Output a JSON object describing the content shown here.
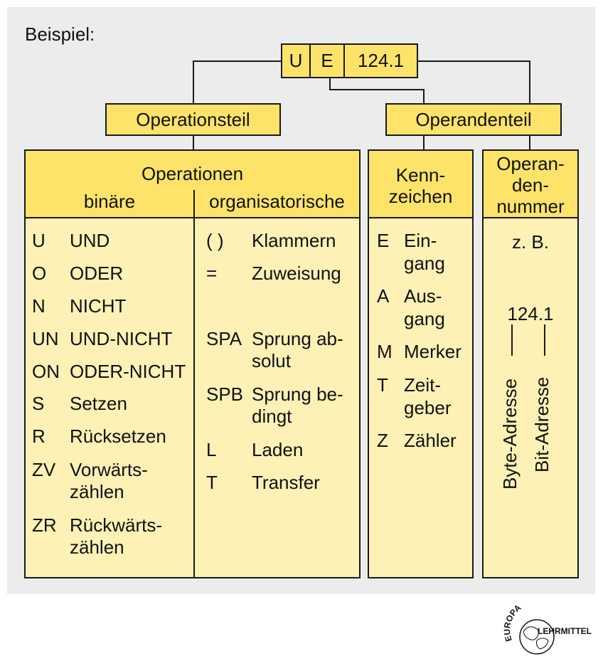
{
  "example_label": "Beispiel:",
  "instruction": {
    "op": "U",
    "operand_code": "E",
    "operand_number": "124.1"
  },
  "operation_part_label": "Operationsteil",
  "operand_part_label": "Operandenteil",
  "operations": {
    "header": "Operationen",
    "binary_header": "binäre",
    "organizational_header": "organisatorische",
    "binary": [
      {
        "code": "U",
        "name": "UND"
      },
      {
        "code": "O",
        "name": "ODER"
      },
      {
        "code": "N",
        "name": "NICHT"
      },
      {
        "code": "UN",
        "name": "UND-NICHT"
      },
      {
        "code": "ON",
        "name": "ODER-NICHT"
      },
      {
        "code": "S",
        "name": "Setzen"
      },
      {
        "code": "R",
        "name": "Rücksetzen"
      },
      {
        "code": "ZV",
        "name": "Vorwärts-",
        "name2": "zählen"
      },
      {
        "code": "ZR",
        "name": "Rückwärts-",
        "name2": "zählen"
      }
    ],
    "organizational": [
      {
        "code": "( )",
        "name": "Klammern"
      },
      {
        "code": "=",
        "name": "Zuweisung"
      },
      {
        "code": "SPA",
        "name": "Sprung ab-",
        "name2": "solut"
      },
      {
        "code": "SPB",
        "name": "Sprung be-",
        "name2": "dingt"
      },
      {
        "code": "L",
        "name": "Laden"
      },
      {
        "code": "T",
        "name": "Transfer"
      }
    ]
  },
  "identifier": {
    "header_line1": "Kenn-",
    "header_line2": "zeichen",
    "items": [
      {
        "code": "E",
        "name": "Ein-",
        "name2": "gang"
      },
      {
        "code": "A",
        "name": "Aus-",
        "name2": "gang"
      },
      {
        "code": "M",
        "name": "Merker"
      },
      {
        "code": "T",
        "name": "Zeit-",
        "name2": "geber"
      },
      {
        "code": "Z",
        "name": "Zähler"
      }
    ]
  },
  "operand_number": {
    "header_line1": "Operan-",
    "header_line2": "den-",
    "header_line3": "nummer",
    "example_prefix": "z. B.",
    "example_value": "124.1",
    "byte_label": "Byte-Adresse",
    "bit_label": "Bit-Adresse"
  },
  "logo": {
    "top_text": "EUROPA",
    "right_text": "LEHRMITTEL"
  }
}
